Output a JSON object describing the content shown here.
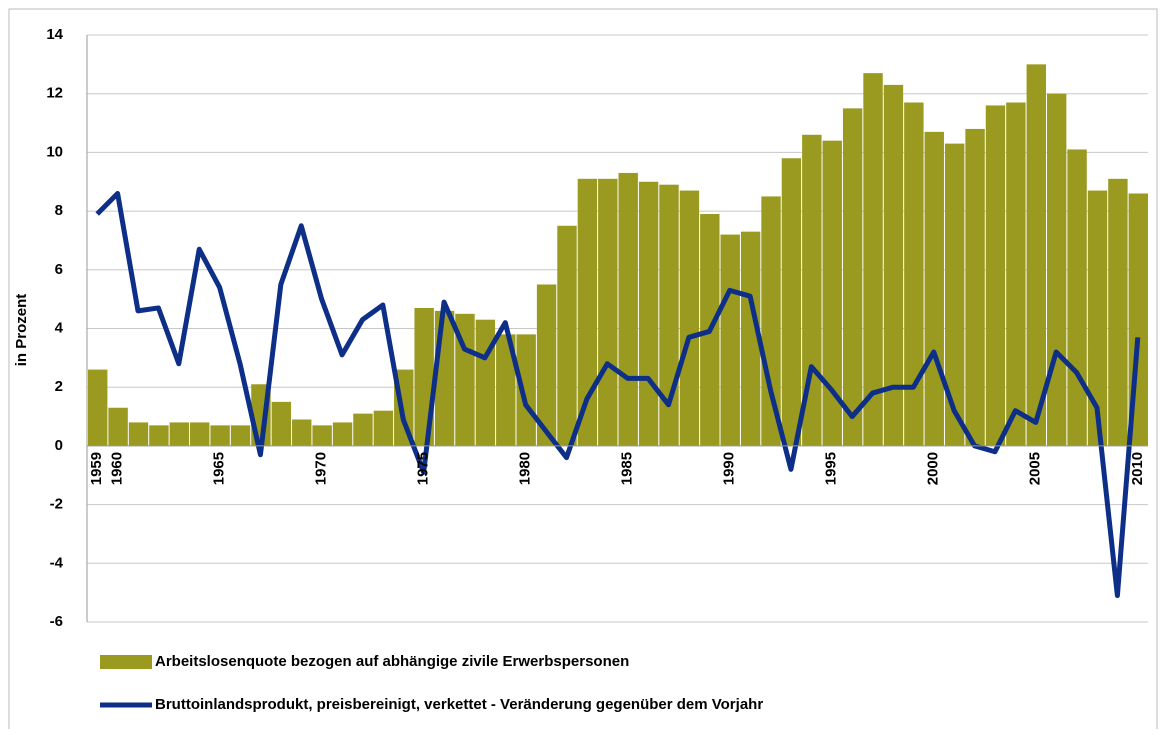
{
  "chart_data": {
    "type": "combo",
    "y_label": "in Prozent",
    "categories": [
      "1959",
      "1960",
      null,
      null,
      null,
      null,
      "1965",
      null,
      null,
      null,
      null,
      "1970",
      null,
      null,
      null,
      null,
      "1975",
      null,
      null,
      null,
      null,
      "1980",
      null,
      null,
      null,
      null,
      "1985",
      null,
      null,
      null,
      null,
      "1990",
      null,
      null,
      null,
      null,
      "1995",
      null,
      null,
      null,
      null,
      "2000",
      null,
      null,
      null,
      null,
      "2005",
      null,
      null,
      null,
      null,
      "2010"
    ],
    "series": [
      {
        "name": "Arbeitslosenquote bezogen auf abhängige zivile Erwerbspersonen",
        "type": "bar",
        "color": "#999a1f",
        "values": [
          2.6,
          1.3,
          0.8,
          0.7,
          0.8,
          0.8,
          0.7,
          0.7,
          2.1,
          1.5,
          0.9,
          0.7,
          0.8,
          1.1,
          1.2,
          2.6,
          4.7,
          4.6,
          4.5,
          4.3,
          3.8,
          3.8,
          5.5,
          7.5,
          9.1,
          9.1,
          9.3,
          9.0,
          8.9,
          8.7,
          7.9,
          7.2,
          7.3,
          8.5,
          9.8,
          10.6,
          10.4,
          11.5,
          12.7,
          12.3,
          11.7,
          10.7,
          10.3,
          10.8,
          11.6,
          11.7,
          13.0,
          12.0,
          10.1,
          8.7,
          9.1,
          8.6
        ]
      },
      {
        "name": "Bruttoinlandsprodukt, preisbereinigt, verkettet - Veränderung gegenüber dem Vorjahr",
        "type": "line",
        "color": "#0e2f87",
        "values": [
          7.9,
          8.6,
          4.6,
          4.7,
          2.8,
          6.7,
          5.4,
          2.8,
          -0.3,
          5.5,
          7.5,
          5.0,
          3.1,
          4.3,
          4.8,
          0.9,
          -0.9,
          4.9,
          3.3,
          3.0,
          4.2,
          1.4,
          0.5,
          -0.4,
          1.6,
          2.8,
          2.3,
          2.3,
          1.4,
          3.7,
          3.9,
          5.3,
          5.1,
          1.9,
          -0.8,
          2.7,
          1.9,
          1.0,
          1.8,
          2.0,
          2.0,
          3.2,
          1.2,
          0.0,
          -0.2,
          1.2,
          0.8,
          3.2,
          2.5,
          1.3,
          -5.1,
          3.7
        ]
      }
    ],
    "ylim": [
      -6,
      14
    ],
    "yticks": [
      -6,
      -4,
      -2,
      0,
      2,
      4,
      6,
      8,
      10,
      12,
      14
    ],
    "grid": true
  }
}
